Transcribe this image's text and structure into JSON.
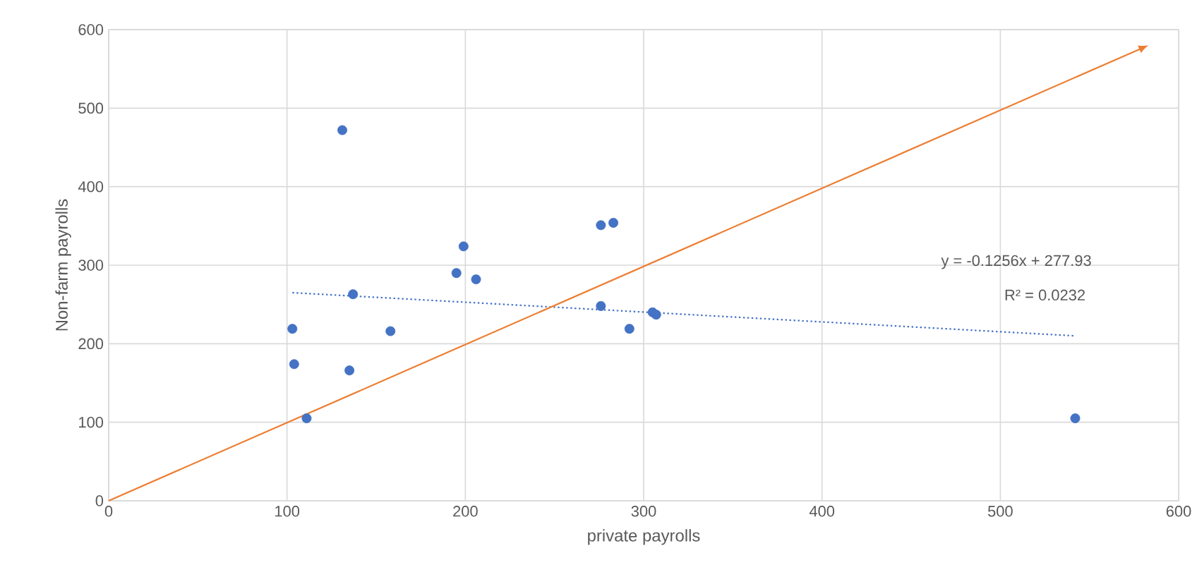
{
  "chart_data": {
    "type": "scatter",
    "xlabel": "private payrolls",
    "ylabel": "Non-farm payrolls",
    "xlim": [
      0,
      600
    ],
    "ylim": [
      0,
      600
    ],
    "xticks": [
      0,
      100,
      200,
      300,
      400,
      500,
      600
    ],
    "yticks": [
      0,
      100,
      200,
      300,
      400,
      500,
      600
    ],
    "grid": true,
    "series": [
      {
        "color": "#4472c4",
        "marker": "circle",
        "x": [
          131,
          103,
          104,
          111,
          135,
          137,
          158,
          195,
          199,
          206,
          276,
          283,
          276,
          292,
          305,
          307,
          542
        ],
        "values": [
          472,
          219,
          174,
          105,
          166,
          263,
          216,
          290,
          324,
          282,
          351,
          354,
          248,
          219,
          240,
          237,
          105
        ]
      },
      {
        "type": "line",
        "color": "#4472c4",
        "line_style": "dotted",
        "marker": "none",
        "x": [
          103,
          542
        ],
        "values": [
          265,
          210
        ]
      },
      {
        "type": "line",
        "color": "#ed7d31",
        "line_style": "solid",
        "marker": "none",
        "x": [
          0,
          578
        ],
        "values": [
          0,
          575
        ]
      }
    ],
    "annotations": [
      "y = -0.1256x + 277.93",
      "R² = 0.0232"
    ]
  }
}
